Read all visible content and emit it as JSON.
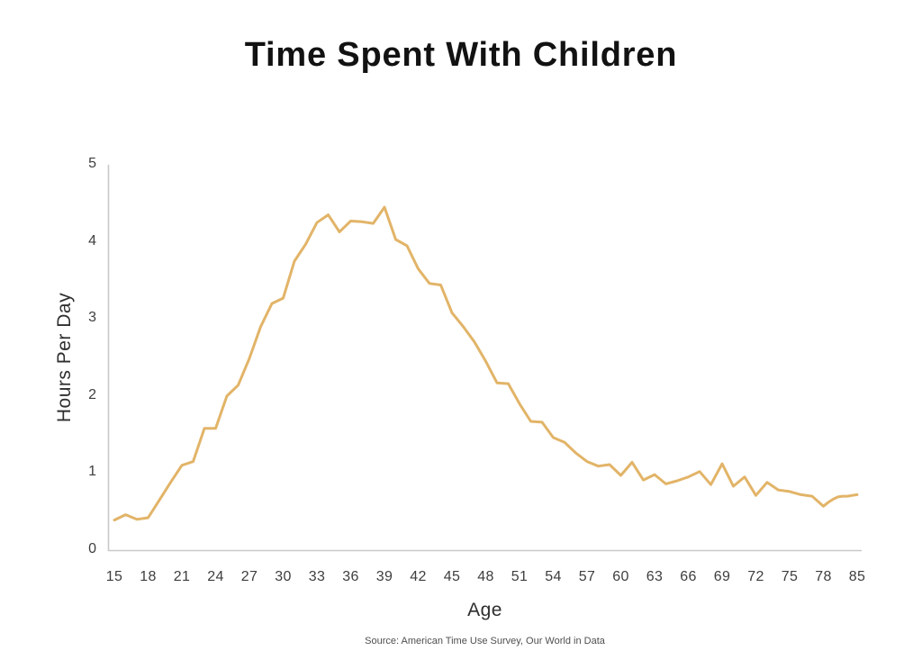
{
  "title": "Time Spent With Children",
  "x_axis_label": "Age",
  "y_axis_label": "Hours Per Day",
  "source": "Source: American Time Use Survey, Our World in Data",
  "colors": {
    "line": "#E2B468",
    "axis": "#C9C9C9",
    "tick_text": "#3E3E3E",
    "title_text": "#121212"
  },
  "chart_data": {
    "type": "line",
    "title": "Time Spent With Children",
    "xlabel": "Age",
    "ylabel": "Hours Per Day",
    "ylim": [
      0,
      5
    ],
    "grid": false,
    "legend": "none",
    "line_color": "#E2B468",
    "x_ticks": [
      15,
      18,
      21,
      24,
      27,
      30,
      33,
      36,
      39,
      42,
      45,
      48,
      51,
      54,
      57,
      60,
      63,
      66,
      69,
      72,
      75,
      78,
      85
    ],
    "y_ticks": [
      0,
      1,
      2,
      3,
      4,
      5
    ],
    "x": [
      15,
      16,
      17,
      18,
      19,
      20,
      21,
      22,
      23,
      24,
      25,
      26,
      27,
      28,
      29,
      30,
      31,
      32,
      33,
      34,
      35,
      36,
      37,
      38,
      39,
      40,
      41,
      42,
      43,
      44,
      45,
      46,
      47,
      48,
      49,
      50,
      51,
      52,
      53,
      54,
      55,
      56,
      57,
      58,
      59,
      60,
      61,
      62,
      63,
      64,
      65,
      66,
      67,
      68,
      69,
      70,
      71,
      72,
      73,
      74,
      75,
      76,
      77,
      78,
      79,
      80,
      81,
      82,
      83,
      84,
      85
    ],
    "y": [
      0.39,
      0.46,
      0.4,
      0.42,
      0.65,
      0.88,
      1.1,
      1.15,
      1.58,
      1.58,
      2.0,
      2.14,
      2.49,
      2.9,
      3.2,
      3.27,
      3.75,
      3.97,
      4.25,
      4.35,
      4.13,
      4.27,
      4.26,
      4.24,
      4.45,
      4.03,
      3.95,
      3.65,
      3.46,
      3.44,
      3.08,
      2.9,
      2.7,
      2.45,
      2.17,
      2.16,
      1.9,
      1.67,
      1.66,
      1.46,
      1.4,
      1.26,
      1.15,
      1.09,
      1.11,
      0.97,
      1.14,
      0.91,
      0.98,
      0.86,
      0.9,
      0.95,
      1.02,
      0.85,
      1.12,
      0.83,
      0.95,
      0.71,
      0.88,
      0.78,
      0.76,
      0.72,
      0.7,
      0.57,
      0.62,
      0.66,
      0.69,
      0.7,
      0.7,
      0.71,
      0.72
    ]
  }
}
